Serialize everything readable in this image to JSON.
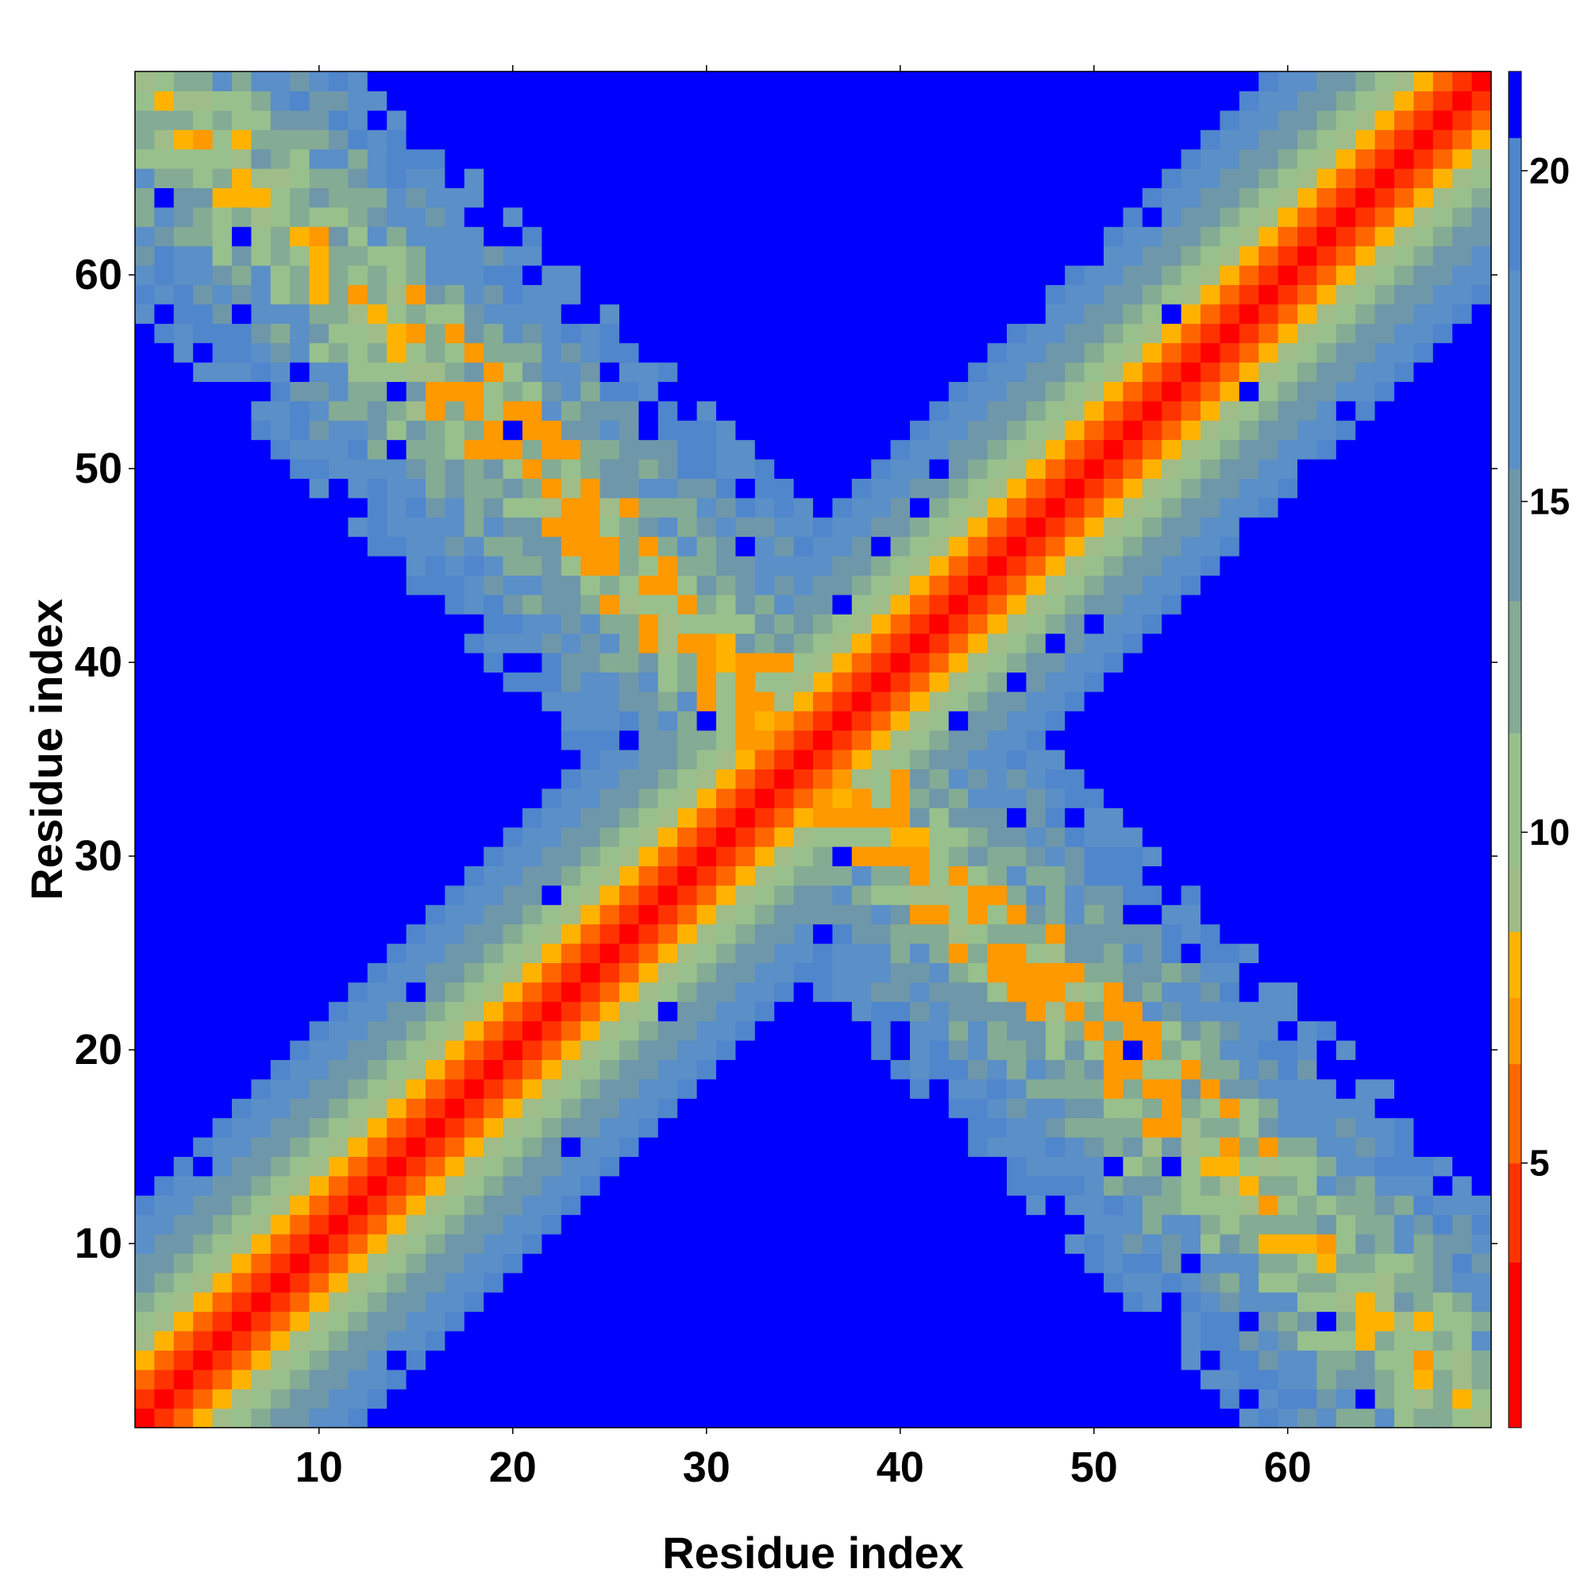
{
  "chart_data": {
    "type": "heatmap",
    "title": "",
    "xlabel": "Residue index",
    "ylabel": "Residue index",
    "n_residues": 70,
    "x_range": [
      1,
      70
    ],
    "y_range": [
      1,
      70
    ],
    "x_ticks": [
      10,
      20,
      30,
      40,
      50,
      60
    ],
    "y_ticks": [
      10,
      20,
      30,
      40,
      50,
      60
    ],
    "grid": false,
    "legend": "colorbar-right",
    "colorbar": {
      "ticks": [
        5,
        10,
        15,
        20
      ],
      "range": [
        1,
        21.5
      ],
      "levels": [
        {
          "max": 3.5,
          "color": "#ff0000"
        },
        {
          "max": 5.0,
          "color": "#ff3300"
        },
        {
          "max": 6.5,
          "color": "#ff6600"
        },
        {
          "max": 7.5,
          "color": "#ff9900"
        },
        {
          "max": 8.5,
          "color": "#ffb300"
        },
        {
          "max": 9.5,
          "color": "#a0bc88"
        },
        {
          "max": 11.5,
          "color": "#98c08c"
        },
        {
          "max": 13.5,
          "color": "#84ab94"
        },
        {
          "max": 15.5,
          "color": "#6f97aa"
        },
        {
          "max": 18.5,
          "color": "#5a8fc8"
        },
        {
          "max": 20.5,
          "color": "#4f86cc"
        },
        {
          "max": 99,
          "color": "#0000ff"
        }
      ]
    },
    "matrix_description": {
      "symmetric": true,
      "main_diagonal": "distance grows with |i-j| (about 3.8 per residue step), saturating at 21",
      "anti_diagonal_contacts": "residues i and j with i+j about 71 are in close contact (distance about 5 to 15)"
    }
  }
}
